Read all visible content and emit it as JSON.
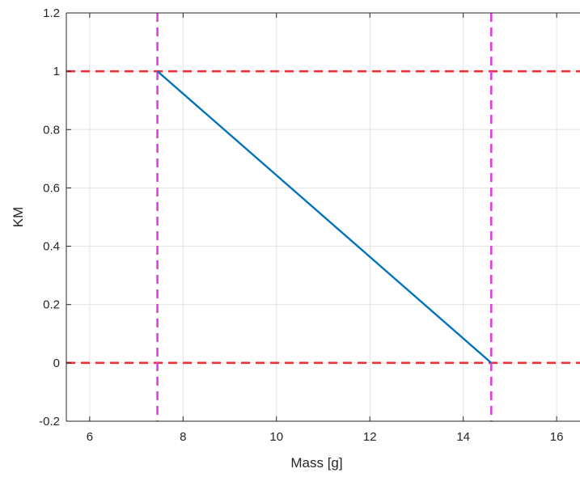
{
  "chart_data": {
    "type": "line",
    "title": "",
    "xlabel": "Mass [g]",
    "ylabel": "KM",
    "xlim": [
      5.5,
      16.5
    ],
    "ylim": [
      -0.2,
      1.2
    ],
    "x_ticks": [
      6,
      8,
      10,
      12,
      14,
      16
    ],
    "y_ticks": [
      -0.2,
      0,
      0.2,
      0.4,
      0.6,
      0.8,
      1,
      1.2
    ],
    "x_tick_labels": [
      "6",
      "8",
      "10",
      "12",
      "14",
      "16"
    ],
    "y_tick_labels": [
      "-0.2",
      "0",
      "0.2",
      "0.4",
      "0.6",
      "0.8",
      "1",
      "1.2"
    ],
    "grid": true,
    "series": [
      {
        "x": [
          7.45,
          14.6
        ],
        "y": [
          1,
          0
        ],
        "color": "#0072BD",
        "style": "solid"
      }
    ],
    "reference_lines": [
      {
        "orientation": "horizontal",
        "value": 1,
        "color": "#E8333A",
        "style": "dashed"
      },
      {
        "orientation": "horizontal",
        "value": 0,
        "color": "#E8333A",
        "style": "dashed"
      },
      {
        "orientation": "vertical",
        "value": 7.45,
        "color": "#E040E0",
        "style": "dashed"
      },
      {
        "orientation": "vertical",
        "value": 14.6,
        "color": "#E040E0",
        "style": "dashed"
      }
    ]
  }
}
